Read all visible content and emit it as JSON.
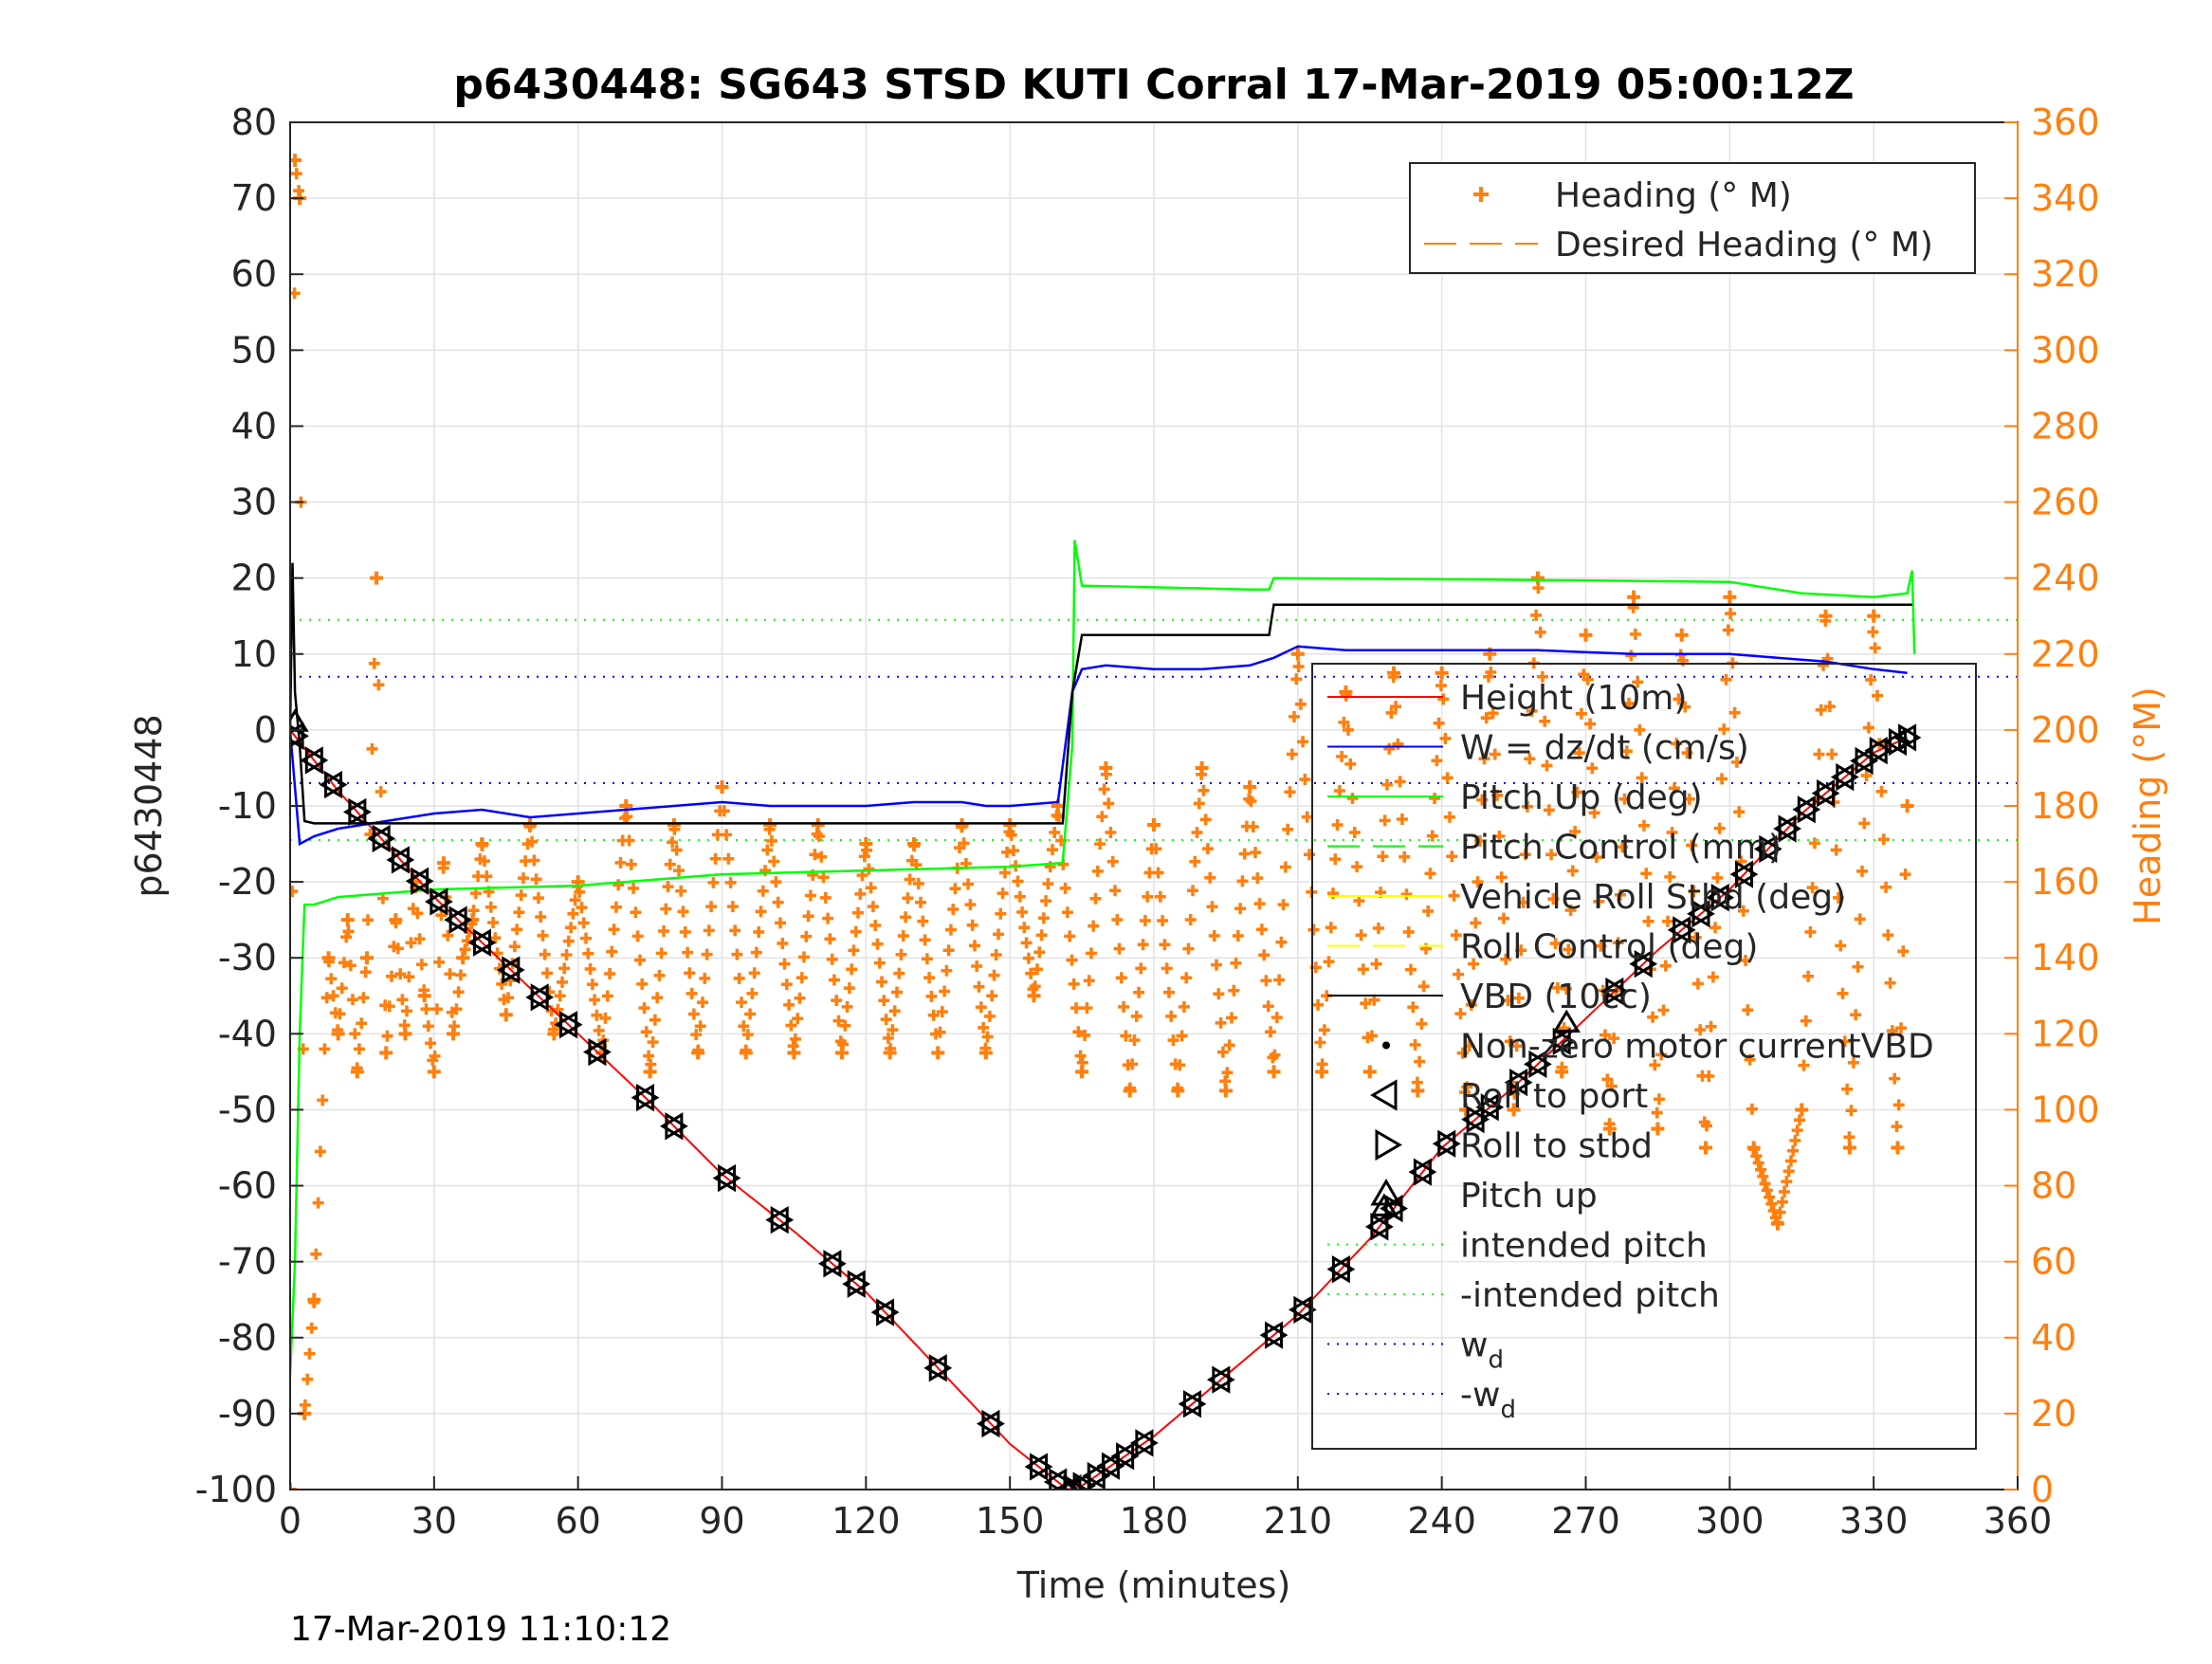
{
  "chart_data": {
    "type": "line",
    "title": "p6430448: SG643 STSD KUTI Corral 17-Mar-2019 05:00:12Z",
    "xlabel": "Time (minutes)",
    "ylabel": "p6430448",
    "y2label": "Heading (°M)",
    "footer": "17-Mar-2019 11:10:12",
    "xlim": [
      0,
      360
    ],
    "ylim": [
      -100,
      80
    ],
    "y2lim": [
      0,
      360
    ],
    "x_ticks": [
      "0",
      "30",
      "60",
      "90",
      "120",
      "150",
      "180",
      "210",
      "240",
      "270",
      "300",
      "330",
      "360"
    ],
    "y_ticks": [
      "80",
      "70",
      "60",
      "50",
      "40",
      "30",
      "20",
      "10",
      "0",
      "-10",
      "-20",
      "-30",
      "-40",
      "-50",
      "-60",
      "-70",
      "-80",
      "-90",
      "-100"
    ],
    "y2_ticks": [
      "360",
      "340",
      "320",
      "300",
      "280",
      "260",
      "240",
      "220",
      "200",
      "180",
      "160",
      "140",
      "120",
      "100",
      "80",
      "60",
      "40",
      "20",
      "0"
    ],
    "grid": true,
    "legend_right_axis": [
      {
        "label": "Heading (° M)",
        "color": "#ff7f0e",
        "style": "plus"
      },
      {
        "label": "Desired Heading (° M)",
        "color": "#ff7f0e",
        "style": "dash"
      }
    ],
    "legend_left_axis": [
      {
        "label": "Height (10m)",
        "color": "#ff0000",
        "style": "line"
      },
      {
        "label": "W = dz/dt (cm/s)",
        "color": "#0000ff",
        "style": "line"
      },
      {
        "label": "Pitch Up (deg)",
        "color": "#00ff00",
        "style": "line"
      },
      {
        "label": "Pitch Control (mm)",
        "color": "#00ff00",
        "style": "dash"
      },
      {
        "label": "Vehicle Roll Stbd (deg)",
        "color": "#ffff00",
        "style": "line"
      },
      {
        "label": "Roll Control (deg)",
        "color": "#ffff00",
        "style": "dash"
      },
      {
        "label": "VBD (10cc)",
        "color": "#000000",
        "style": "line"
      },
      {
        "label": "Non-zero motor currentVBD",
        "color": "#000000",
        "style": "dot"
      },
      {
        "label": "Roll to port",
        "color": "#000000",
        "style": "tri-left"
      },
      {
        "label": "Roll to stbd",
        "color": "#000000",
        "style": "tri-right"
      },
      {
        "label": "Pitch up",
        "color": "#000000",
        "style": "tri-up"
      },
      {
        "label": "intended pitch",
        "color": "#00ff00",
        "style": "dotted"
      },
      {
        "label": "-intended pitch",
        "color": "#00ff00",
        "style": "dotted"
      },
      {
        "label": "w",
        "sub": "d",
        "color": "#0000ff",
        "style": "dotted"
      },
      {
        "label": "-w",
        "sub": "d",
        "color": "#0000ff",
        "style": "dotted"
      }
    ],
    "series": [
      {
        "name": "Height (10m)",
        "color": "#ff0000",
        "axis": "left",
        "x": [
          0,
          10,
          20,
          30,
          45,
          60,
          75,
          90,
          105,
          120,
          135,
          150,
          162,
          165,
          180,
          195,
          210,
          225,
          240,
          255,
          270,
          285,
          300,
          315,
          330,
          337
        ],
        "y": [
          0,
          -8,
          -15,
          -22,
          -31,
          -40,
          -49,
          -58.5,
          -66,
          -74,
          -84,
          -94,
          -100,
          -99.5,
          -93,
          -85,
          -77,
          -67,
          -55,
          -47,
          -38,
          -29,
          -21,
          -11,
          -3,
          -1
        ]
      },
      {
        "name": "W = dz/dt (cm/s)",
        "color": "#0000ff",
        "axis": "left",
        "x": [
          0,
          2,
          5,
          10,
          20,
          30,
          40,
          50,
          60,
          70,
          80,
          90,
          100,
          110,
          120,
          130,
          140,
          145,
          150,
          160,
          163,
          165,
          170,
          180,
          190,
          200,
          205,
          210,
          220,
          240,
          260,
          280,
          300,
          320,
          330,
          337
        ],
        "y": [
          0,
          -15,
          -14,
          -13,
          -12,
          -11,
          -10.5,
          -11.5,
          -11,
          -10.5,
          -10,
          -9.5,
          -10,
          -10,
          -10,
          -9.5,
          -9.5,
          -10,
          -10,
          -9.5,
          5,
          8,
          8.5,
          8,
          8,
          8.5,
          9.5,
          11,
          10.5,
          10.5,
          10.5,
          10,
          10,
          9,
          8,
          7.5
        ]
      },
      {
        "name": "Pitch Up (deg)",
        "color": "#00ff00",
        "axis": "left",
        "x": [
          0,
          1,
          2,
          3,
          5,
          10,
          30,
          60,
          90,
          120,
          150,
          161,
          163,
          163.5,
          165,
          200,
          204,
          205,
          250,
          300,
          315,
          330,
          337,
          338,
          338.5
        ],
        "y": [
          -85,
          -70,
          -40,
          -23,
          -23,
          -22,
          -21,
          -20.5,
          -19,
          -18.5,
          -18,
          -17.5,
          -2,
          25,
          19,
          18.5,
          18.5,
          20,
          19.8,
          19.5,
          18,
          17.5,
          18,
          21,
          10
        ]
      },
      {
        "name": "VBD (10cc)",
        "color": "#000000",
        "axis": "left",
        "x": [
          0,
          0.5,
          1,
          2,
          3,
          5,
          60,
          120,
          161,
          163,
          165,
          204,
          205,
          337,
          338
        ],
        "y": [
          0,
          22,
          5,
          -2,
          -12,
          -12.3,
          -12.3,
          -12.3,
          -12.3,
          5,
          12.5,
          12.5,
          16.5,
          16.5,
          16.5
        ]
      },
      {
        "name": "intended pitch",
        "color": "#00ff00",
        "axis": "left",
        "y_const": 14.5
      },
      {
        "name": "-intended pitch",
        "color": "#00ff00",
        "axis": "left",
        "y_const": -14.5
      },
      {
        "name": "w_d",
        "color": "#0000ff",
        "axis": "left",
        "y_const": 7
      },
      {
        "name": "-w_d",
        "color": "#0000ff",
        "axis": "left",
        "y_const": -7
      },
      {
        "name": "Heading (° M)",
        "color": "#ff7f0e",
        "axis": "right",
        "style": "plus",
        "x": [
          0,
          1,
          2,
          3,
          5,
          8,
          10,
          12,
          14,
          16,
          18,
          20,
          22,
          24,
          26,
          28,
          30,
          32,
          34,
          36,
          38,
          40,
          45,
          50,
          55,
          60,
          65,
          70,
          75,
          80,
          85,
          90,
          95,
          100,
          105,
          110,
          115,
          120,
          125,
          130,
          135,
          140,
          145,
          150,
          155,
          160,
          165,
          170,
          175,
          180,
          185,
          190,
          195,
          200,
          205,
          210,
          215,
          220,
          225,
          230,
          235,
          240,
          245,
          250,
          255,
          260,
          265,
          270,
          275,
          280,
          285,
          290,
          295,
          300,
          305,
          310,
          315,
          320,
          325,
          330,
          335,
          337
        ],
        "y": [
          0,
          350,
          340,
          20,
          50,
          140,
          120,
          150,
          110,
          140,
          240,
          115,
          150,
          120,
          160,
          130,
          110,
          165,
          120,
          140,
          150,
          170,
          125,
          175,
          120,
          160,
          115,
          180,
          110,
          175,
          115,
          185,
          115,
          175,
          115,
          175,
          115,
          170,
          115,
          170,
          115,
          175,
          115,
          175,
          130,
          180,
          110,
          190,
          105,
          175,
          105,
          190,
          105,
          185,
          110,
          220,
          110,
          210,
          110,
          215,
          105,
          215,
          100,
          220,
          100,
          240,
          110,
          225,
          95,
          235,
          95,
          225,
          90,
          235,
          90,
          70,
          100,
          230,
          90,
          230,
          90,
          180
        ]
      }
    ],
    "markers": {
      "roll_to_port_and_stbd_x": [
        1,
        5,
        9,
        14,
        19,
        23,
        27,
        31,
        35,
        40,
        46,
        52,
        58,
        64,
        74,
        80,
        91,
        102,
        113,
        118,
        124,
        135,
        146,
        156,
        160,
        163,
        165,
        168,
        171,
        174,
        178,
        188,
        194,
        205,
        211,
        219,
        227,
        230,
        236,
        241,
        247,
        250,
        256,
        260,
        265,
        276,
        282,
        290,
        294,
        298,
        303,
        308,
        312,
        316,
        320,
        324,
        328,
        331,
        335,
        337
      ],
      "pitch_up_x": [
        1,
        228,
        266
      ]
    }
  }
}
